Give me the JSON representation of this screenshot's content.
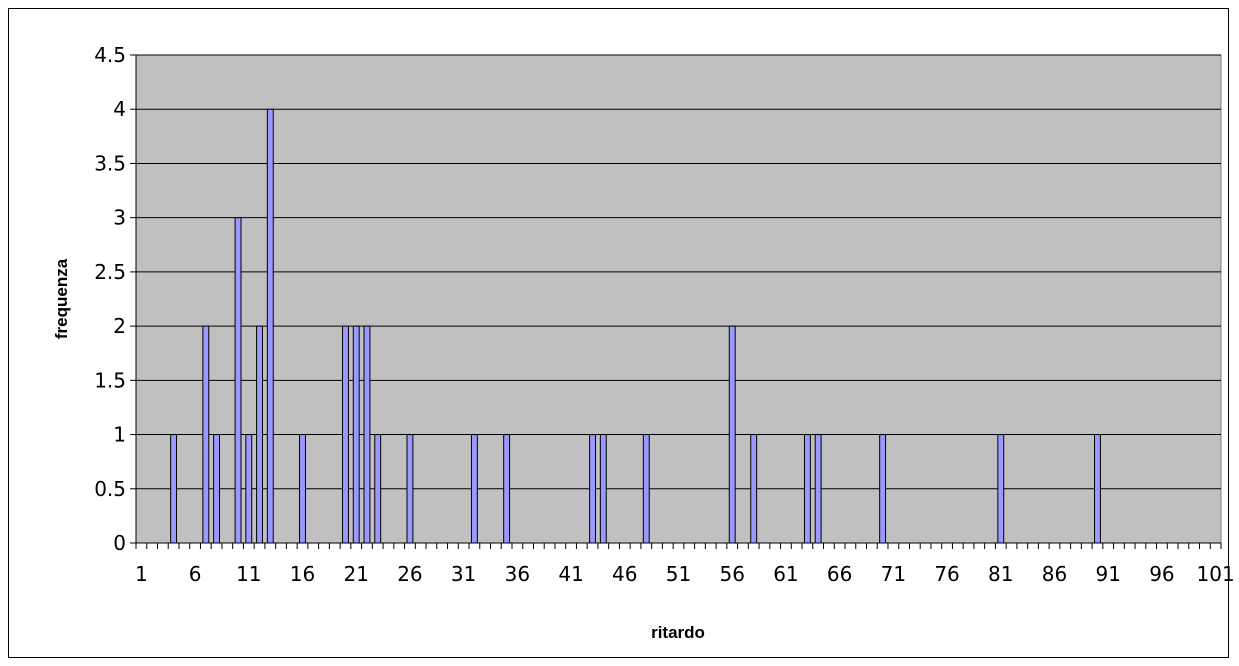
{
  "chart_data": {
    "type": "bar",
    "xlabel": "ritardo",
    "ylabel": "frequenza",
    "x_range": [
      1,
      101
    ],
    "x_tick_labels": [
      1,
      6,
      11,
      16,
      21,
      26,
      31,
      36,
      41,
      46,
      51,
      56,
      61,
      66,
      71,
      76,
      81,
      86,
      91,
      96,
      101
    ],
    "ylim": [
      0,
      4.5
    ],
    "y_ticks": [
      0,
      0.5,
      1,
      1.5,
      2,
      2.5,
      3,
      3.5,
      4,
      4.5
    ],
    "grid": "horizontal",
    "legend": "none",
    "plot_background": "#c0c0c0",
    "bar_color": "#9999ff",
    "points": [
      {
        "x": 4,
        "y": 1
      },
      {
        "x": 7,
        "y": 2
      },
      {
        "x": 8,
        "y": 1
      },
      {
        "x": 10,
        "y": 3
      },
      {
        "x": 11,
        "y": 1
      },
      {
        "x": 12,
        "y": 2
      },
      {
        "x": 13,
        "y": 4
      },
      {
        "x": 16,
        "y": 1
      },
      {
        "x": 20,
        "y": 2
      },
      {
        "x": 21,
        "y": 2
      },
      {
        "x": 22,
        "y": 2
      },
      {
        "x": 23,
        "y": 1
      },
      {
        "x": 26,
        "y": 1
      },
      {
        "x": 32,
        "y": 1
      },
      {
        "x": 35,
        "y": 1
      },
      {
        "x": 43,
        "y": 1
      },
      {
        "x": 44,
        "y": 1
      },
      {
        "x": 48,
        "y": 1
      },
      {
        "x": 56,
        "y": 2
      },
      {
        "x": 58,
        "y": 1
      },
      {
        "x": 63,
        "y": 1
      },
      {
        "x": 64,
        "y": 1
      },
      {
        "x": 70,
        "y": 1
      },
      {
        "x": 81,
        "y": 1
      },
      {
        "x": 90,
        "y": 1
      }
    ]
  }
}
